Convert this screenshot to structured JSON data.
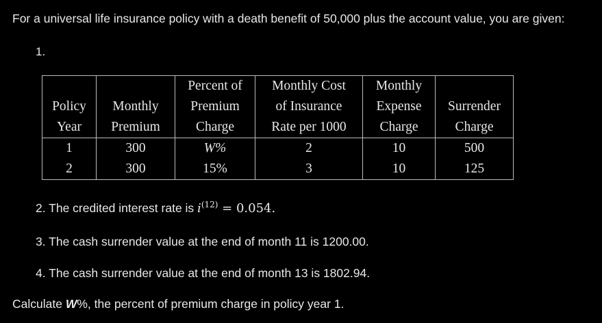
{
  "intro": "For a universal life insurance policy with a death benefit of 50,000 plus the account value, you are given:",
  "item1_number": "1.",
  "table": {
    "header_lines": [
      [
        "",
        "",
        "Percent of",
        "Monthly Cost",
        "Monthly",
        ""
      ],
      [
        "Policy",
        "Monthly",
        "Premium",
        "of Insurance",
        "Expense",
        "Surrender"
      ],
      [
        "Year",
        "Premium",
        "Charge",
        "Rate per 1000",
        "Charge",
        "Charge"
      ]
    ],
    "rows": [
      [
        "1",
        "300",
        "W%",
        "2",
        "10",
        "500"
      ],
      [
        "2",
        "300",
        "15%",
        "3",
        "10",
        "125"
      ]
    ]
  },
  "item2": {
    "prefix": "2. The credited interest rate is ",
    "math_var": "i",
    "math_sup": "(12)",
    "math_rest": " = 0.054."
  },
  "item3": "3. The cash surrender value at the end of month 11 is 1200.00.",
  "item4": "4. The cash surrender value at the end of month 13 is 1802.94.",
  "question": {
    "prefix": "Calculate ",
    "bold": "W",
    "suffix": "%, the percent of premium charge in policy year 1."
  }
}
